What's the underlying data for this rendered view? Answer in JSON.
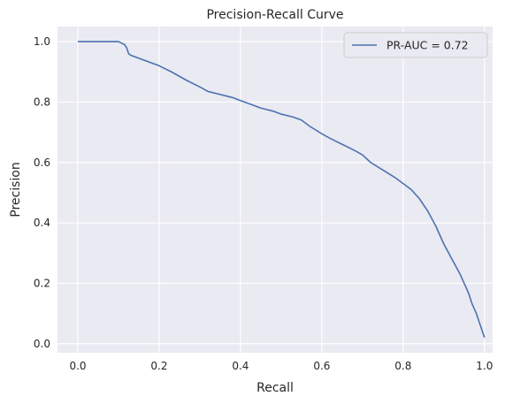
{
  "chart_data": {
    "type": "line",
    "title": "Precision-Recall Curve",
    "xlabel": "Recall",
    "ylabel": "Precision",
    "xlim": [
      -0.05,
      1.02
    ],
    "ylim": [
      -0.03,
      1.05
    ],
    "xticks": [
      "0.0",
      "0.2",
      "0.4",
      "0.6",
      "0.8",
      "1.0"
    ],
    "xtick_values": [
      0.0,
      0.2,
      0.4,
      0.6,
      0.8,
      1.0
    ],
    "yticks": [
      "0.0",
      "0.2",
      "0.4",
      "0.6",
      "0.8",
      "1.0"
    ],
    "ytick_values": [
      0.0,
      0.2,
      0.4,
      0.6,
      0.8,
      1.0
    ],
    "grid": true,
    "legend_position": "top-right",
    "background_color": "#eaeaf2",
    "grid_color": "#ffffff",
    "series": [
      {
        "name": "PR-AUC = 0.72",
        "color": "#4c72b0",
        "x": [
          0.0,
          0.02,
          0.05,
          0.08,
          0.1,
          0.115,
          0.12,
          0.125,
          0.13,
          0.15,
          0.17,
          0.2,
          0.23,
          0.25,
          0.27,
          0.3,
          0.32,
          0.35,
          0.38,
          0.4,
          0.42,
          0.45,
          0.48,
          0.5,
          0.53,
          0.55,
          0.57,
          0.6,
          0.62,
          0.65,
          0.68,
          0.7,
          0.72,
          0.75,
          0.78,
          0.8,
          0.82,
          0.84,
          0.86,
          0.88,
          0.9,
          0.92,
          0.94,
          0.95,
          0.96,
          0.97,
          0.98,
          0.99,
          1.0
        ],
        "y": [
          1.0,
          1.0,
          1.0,
          1.0,
          1.0,
          0.99,
          0.98,
          0.96,
          0.955,
          0.945,
          0.935,
          0.92,
          0.9,
          0.885,
          0.87,
          0.85,
          0.835,
          0.825,
          0.815,
          0.805,
          0.795,
          0.78,
          0.77,
          0.76,
          0.75,
          0.74,
          0.72,
          0.695,
          0.68,
          0.66,
          0.64,
          0.625,
          0.6,
          0.575,
          0.55,
          0.53,
          0.51,
          0.48,
          0.44,
          0.39,
          0.33,
          0.28,
          0.23,
          0.2,
          0.17,
          0.13,
          0.1,
          0.06,
          0.02
        ]
      }
    ]
  }
}
